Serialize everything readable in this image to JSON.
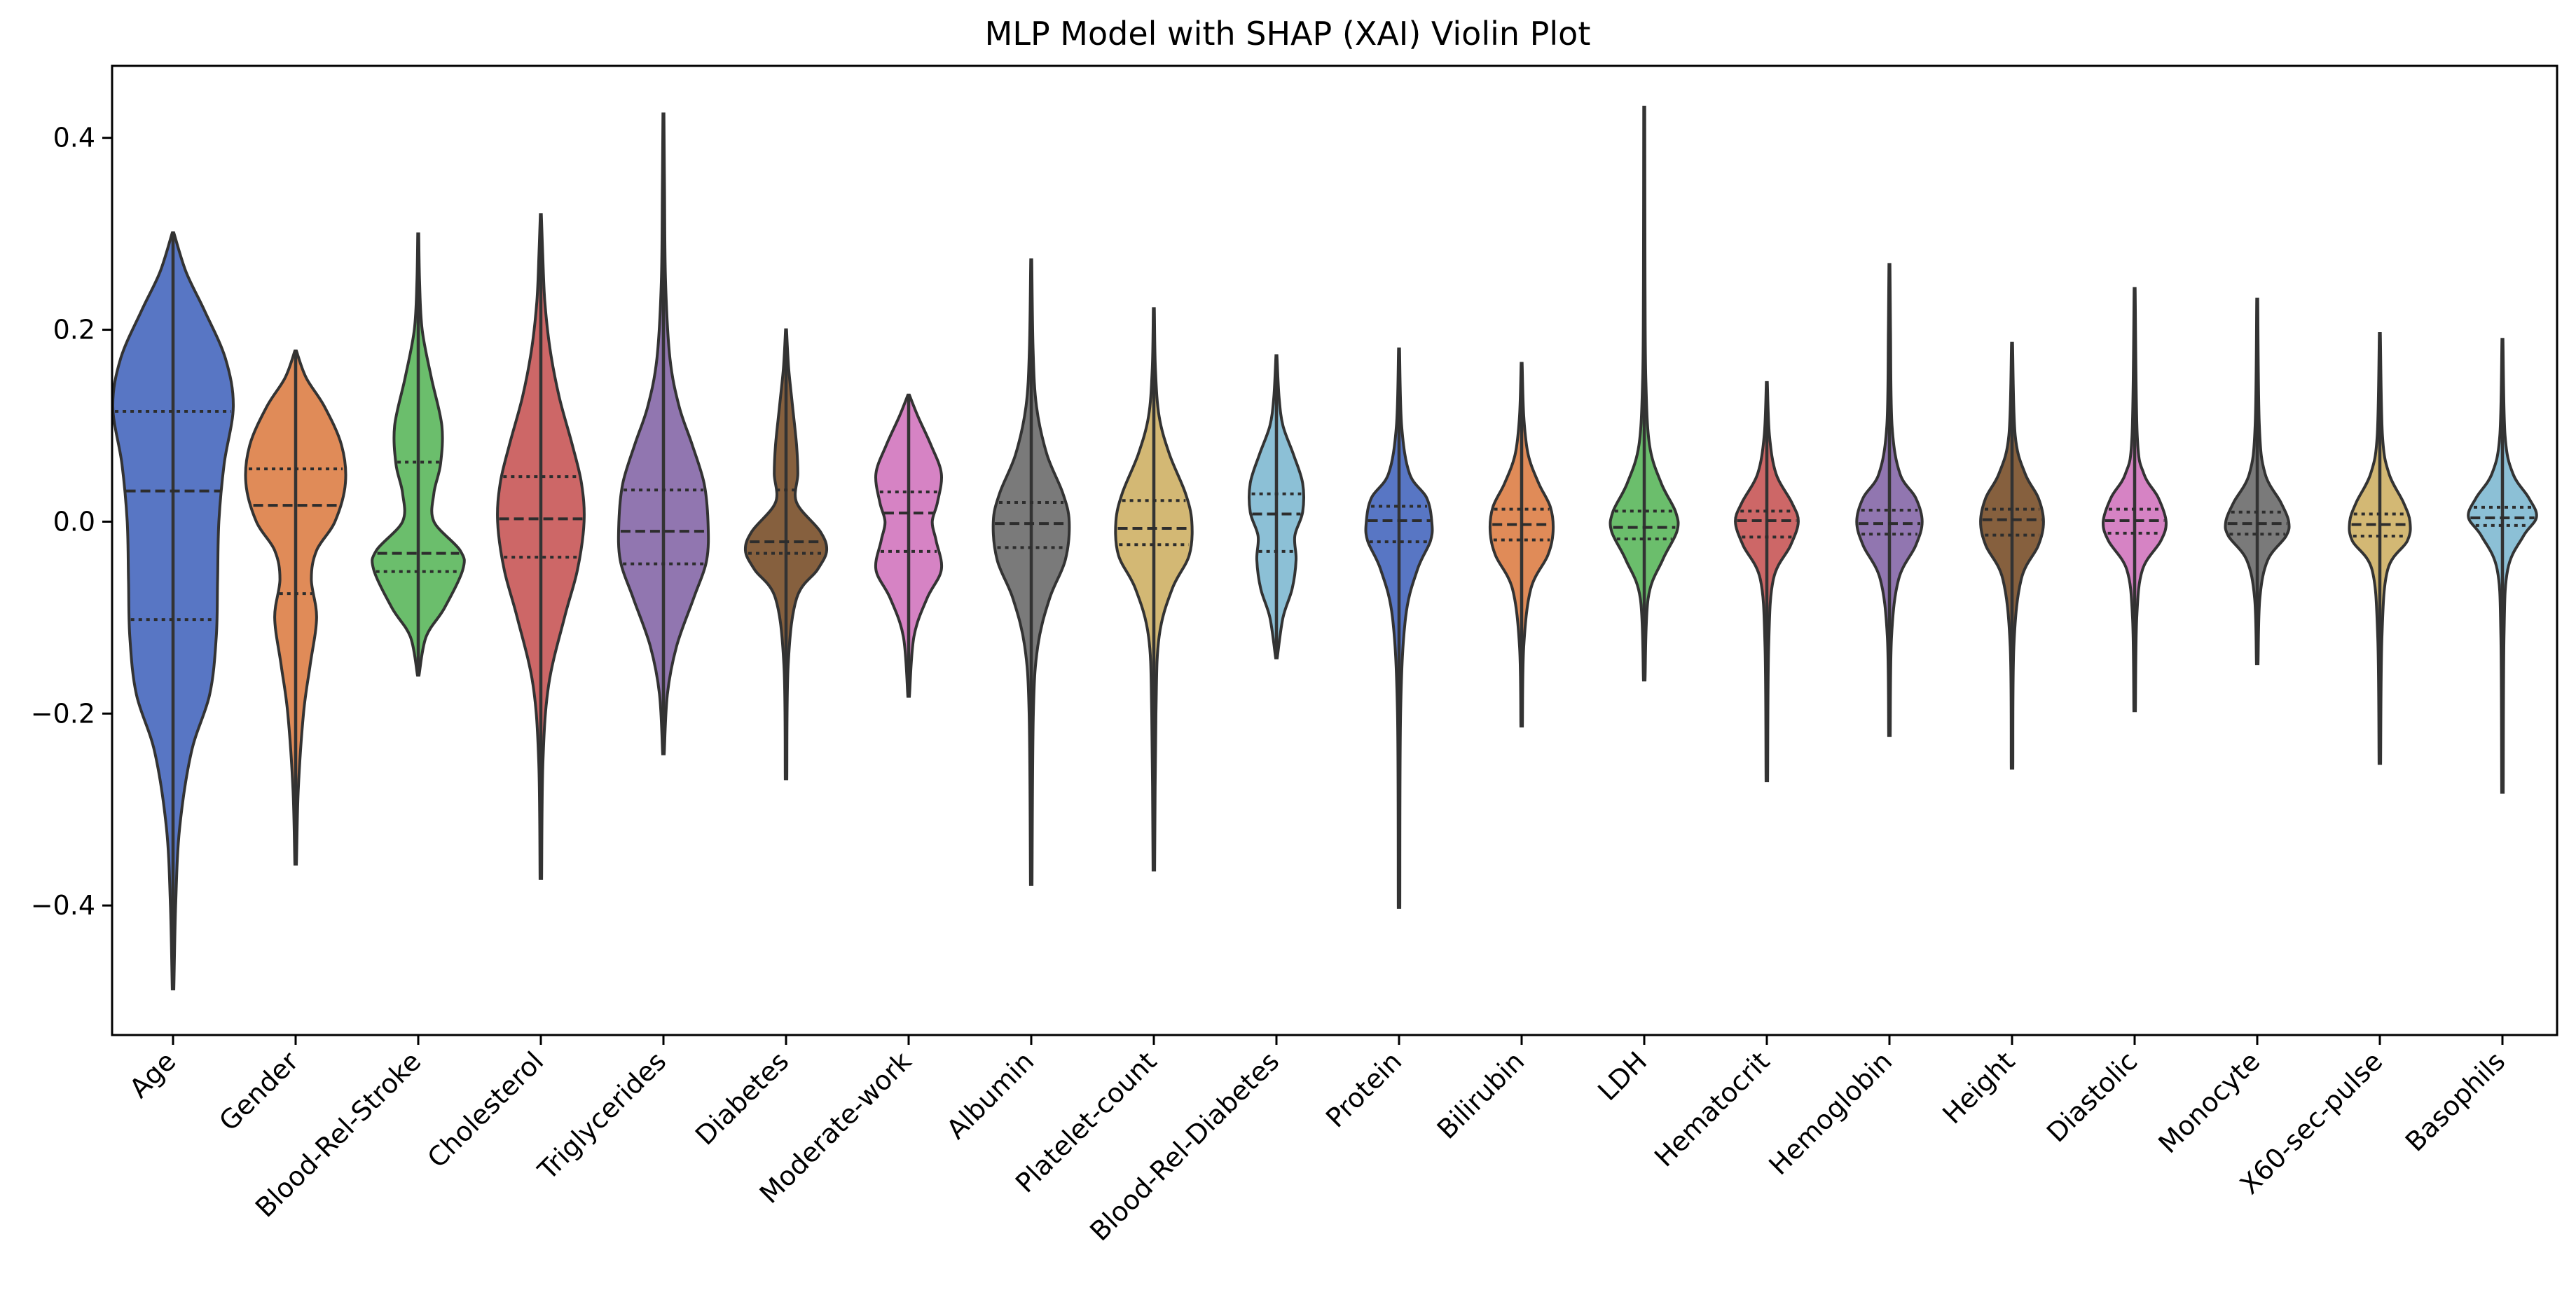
{
  "chart_data": {
    "type": "violin",
    "title": "MLP Model with SHAP (XAI) Violin Plot",
    "xlabel": "",
    "ylabel": "",
    "ylim": [
      -0.535,
      0.475
    ],
    "yticks": [
      -0.4,
      -0.2,
      0.0,
      0.2,
      0.4
    ],
    "ytick_labels": [
      "−0.4",
      "−0.2",
      "0.0",
      "0.2",
      "0.4"
    ],
    "grid": false,
    "legend": "none",
    "inner": "quartile",
    "categories": [
      "Age",
      "Gender",
      "Blood-Rel-Stroke",
      "Cholesterol",
      "Triglycerides",
      "Diabetes",
      "Moderate-work",
      "Albumin",
      "Platelet-count",
      "Blood-Rel-Diabetes",
      "Protein",
      "Bilirubin",
      "LDH",
      "Hematocrit",
      "Hemoglobin",
      "Height",
      "Diastolic",
      "Monocyte",
      "X60-sec-pulse",
      "Basophils"
    ],
    "series": [
      {
        "category": "Age",
        "color": "#5876c4",
        "min": -0.487,
        "max": 0.301,
        "q1": -0.102,
        "median": 0.032,
        "q3": 0.115,
        "profile": [
          [
            -0.487,
            0.003
          ],
          [
            -0.4,
            0.01
          ],
          [
            -0.32,
            0.025
          ],
          [
            -0.24,
            0.07
          ],
          [
            -0.18,
            0.14
          ],
          [
            -0.12,
            0.165
          ],
          [
            -0.06,
            0.17
          ],
          [
            0.0,
            0.175
          ],
          [
            0.06,
            0.195
          ],
          [
            0.12,
            0.23
          ],
          [
            0.17,
            0.2
          ],
          [
            0.22,
            0.12
          ],
          [
            0.26,
            0.05
          ],
          [
            0.301,
            0.003
          ]
        ]
      },
      {
        "category": "Gender",
        "color": "#e08b58",
        "min": -0.357,
        "max": 0.178,
        "q1": -0.075,
        "median": 0.017,
        "q3": 0.055,
        "profile": [
          [
            -0.357,
            0.003
          ],
          [
            -0.28,
            0.01
          ],
          [
            -0.2,
            0.03
          ],
          [
            -0.15,
            0.055
          ],
          [
            -0.1,
            0.08
          ],
          [
            -0.06,
            0.06
          ],
          [
            -0.03,
            0.08
          ],
          [
            0.0,
            0.15
          ],
          [
            0.04,
            0.19
          ],
          [
            0.08,
            0.175
          ],
          [
            0.12,
            0.11
          ],
          [
            0.15,
            0.04
          ],
          [
            0.178,
            0.003
          ]
        ]
      },
      {
        "category": "Blood-Rel-Stroke",
        "color": "#6bbe6c",
        "min": -0.16,
        "max": 0.3,
        "q1": -0.052,
        "median": -0.033,
        "q3": 0.062,
        "profile": [
          [
            -0.16,
            0.003
          ],
          [
            -0.12,
            0.03
          ],
          [
            -0.09,
            0.1
          ],
          [
            -0.05,
            0.17
          ],
          [
            -0.03,
            0.16
          ],
          [
            0.0,
            0.06
          ],
          [
            0.03,
            0.06
          ],
          [
            0.06,
            0.085
          ],
          [
            0.1,
            0.09
          ],
          [
            0.15,
            0.05
          ],
          [
            0.2,
            0.015
          ],
          [
            0.25,
            0.005
          ],
          [
            0.3,
            0.002
          ]
        ]
      },
      {
        "category": "Cholesterol",
        "color": "#cd6767",
        "min": -0.372,
        "max": 0.32,
        "q1": -0.037,
        "median": 0.003,
        "q3": 0.047,
        "profile": [
          [
            -0.372,
            0.003
          ],
          [
            -0.25,
            0.008
          ],
          [
            -0.17,
            0.03
          ],
          [
            -0.1,
            0.09
          ],
          [
            -0.05,
            0.14
          ],
          [
            0.0,
            0.165
          ],
          [
            0.04,
            0.155
          ],
          [
            0.08,
            0.12
          ],
          [
            0.13,
            0.07
          ],
          [
            0.18,
            0.035
          ],
          [
            0.23,
            0.015
          ],
          [
            0.28,
            0.007
          ],
          [
            0.32,
            0.002
          ]
        ]
      },
      {
        "category": "Triglycerides",
        "color": "#9176b0",
        "min": -0.242,
        "max": 0.425,
        "q1": -0.044,
        "median": -0.01,
        "q3": 0.033,
        "profile": [
          [
            -0.242,
            0.003
          ],
          [
            -0.18,
            0.015
          ],
          [
            -0.13,
            0.05
          ],
          [
            -0.08,
            0.115
          ],
          [
            -0.04,
            0.165
          ],
          [
            0.0,
            0.17
          ],
          [
            0.04,
            0.155
          ],
          [
            0.08,
            0.11
          ],
          [
            0.12,
            0.06
          ],
          [
            0.17,
            0.025
          ],
          [
            0.25,
            0.008
          ],
          [
            0.35,
            0.004
          ],
          [
            0.425,
            0.002
          ]
        ]
      },
      {
        "category": "Diabetes",
        "color": "#86603e",
        "min": -0.268,
        "max": 0.2,
        "q1": -0.033,
        "median": -0.021,
        "q3": 0.033,
        "profile": [
          [
            -0.268,
            0.003
          ],
          [
            -0.15,
            0.008
          ],
          [
            -0.08,
            0.04
          ],
          [
            -0.05,
            0.12
          ],
          [
            -0.03,
            0.155
          ],
          [
            -0.01,
            0.13
          ],
          [
            0.02,
            0.04
          ],
          [
            0.05,
            0.045
          ],
          [
            0.08,
            0.04
          ],
          [
            0.12,
            0.025
          ],
          [
            0.16,
            0.01
          ],
          [
            0.2,
            0.002
          ]
        ]
      },
      {
        "category": "Moderate-work",
        "color": "#d683c4",
        "min": -0.182,
        "max": 0.132,
        "q1": -0.031,
        "median": 0.009,
        "q3": 0.031,
        "profile": [
          [
            -0.182,
            0.003
          ],
          [
            -0.12,
            0.02
          ],
          [
            -0.08,
            0.07
          ],
          [
            -0.05,
            0.125
          ],
          [
            -0.02,
            0.105
          ],
          [
            0.0,
            0.09
          ],
          [
            0.02,
            0.11
          ],
          [
            0.05,
            0.125
          ],
          [
            0.08,
            0.085
          ],
          [
            0.11,
            0.035
          ],
          [
            0.132,
            0.003
          ]
        ]
      },
      {
        "category": "Albumin",
        "color": "#7a7a7a",
        "min": -0.378,
        "max": 0.273,
        "q1": -0.027,
        "median": -0.002,
        "q3": 0.02,
        "profile": [
          [
            -0.378,
            0.003
          ],
          [
            -0.2,
            0.008
          ],
          [
            -0.13,
            0.025
          ],
          [
            -0.08,
            0.07
          ],
          [
            -0.04,
            0.13
          ],
          [
            0.0,
            0.145
          ],
          [
            0.03,
            0.12
          ],
          [
            0.07,
            0.06
          ],
          [
            0.12,
            0.02
          ],
          [
            0.18,
            0.007
          ],
          [
            0.273,
            0.002
          ]
        ]
      },
      {
        "category": "Platelet-count",
        "color": "#d3b874",
        "min": -0.363,
        "max": 0.222,
        "q1": -0.024,
        "median": -0.007,
        "q3": 0.022,
        "profile": [
          [
            -0.363,
            0.003
          ],
          [
            -0.2,
            0.008
          ],
          [
            -0.12,
            0.02
          ],
          [
            -0.07,
            0.07
          ],
          [
            -0.035,
            0.135
          ],
          [
            0.0,
            0.145
          ],
          [
            0.03,
            0.12
          ],
          [
            0.07,
            0.06
          ],
          [
            0.11,
            0.02
          ],
          [
            0.16,
            0.006
          ],
          [
            0.222,
            0.002
          ]
        ]
      },
      {
        "category": "Blood-Rel-Diabetes",
        "color": "#8cc0d6",
        "min": -0.142,
        "max": 0.173,
        "q1": -0.031,
        "median": 0.008,
        "q3": 0.029,
        "profile": [
          [
            -0.142,
            0.003
          ],
          [
            -0.1,
            0.025
          ],
          [
            -0.07,
            0.06
          ],
          [
            -0.04,
            0.075
          ],
          [
            -0.015,
            0.07
          ],
          [
            0.01,
            0.1
          ],
          [
            0.04,
            0.1
          ],
          [
            0.07,
            0.065
          ],
          [
            0.1,
            0.025
          ],
          [
            0.13,
            0.01
          ],
          [
            0.173,
            0.002
          ]
        ]
      },
      {
        "category": "Protein",
        "color": "#5876c4",
        "min": -0.402,
        "max": 0.18,
        "q1": -0.021,
        "median": 0.001,
        "q3": 0.016,
        "profile": [
          [
            -0.402,
            0.003
          ],
          [
            -0.2,
            0.006
          ],
          [
            -0.1,
            0.025
          ],
          [
            -0.05,
            0.07
          ],
          [
            -0.02,
            0.12
          ],
          [
            0.0,
            0.125
          ],
          [
            0.025,
            0.105
          ],
          [
            0.05,
            0.04
          ],
          [
            0.1,
            0.01
          ],
          [
            0.18,
            0.002
          ]
        ]
      },
      {
        "category": "Bilirubin",
        "color": "#e08b58",
        "min": -0.213,
        "max": 0.165,
        "q1": -0.019,
        "median": -0.003,
        "q3": 0.013,
        "profile": [
          [
            -0.213,
            0.003
          ],
          [
            -0.13,
            0.008
          ],
          [
            -0.07,
            0.035
          ],
          [
            -0.035,
            0.1
          ],
          [
            -0.01,
            0.12
          ],
          [
            0.015,
            0.11
          ],
          [
            0.04,
            0.065
          ],
          [
            0.07,
            0.025
          ],
          [
            0.11,
            0.008
          ],
          [
            0.165,
            0.002
          ]
        ]
      },
      {
        "category": "LDH",
        "color": "#6bbe6c",
        "min": -0.165,
        "max": 0.432,
        "q1": -0.018,
        "median": -0.006,
        "q3": 0.011,
        "profile": [
          [
            -0.165,
            0.003
          ],
          [
            -0.08,
            0.015
          ],
          [
            -0.04,
            0.07
          ],
          [
            -0.01,
            0.125
          ],
          [
            0.01,
            0.12
          ],
          [
            0.04,
            0.065
          ],
          [
            0.08,
            0.02
          ],
          [
            0.15,
            0.006
          ],
          [
            0.25,
            0.003
          ],
          [
            0.432,
            0.002
          ]
        ]
      },
      {
        "category": "Hematocrit",
        "color": "#cd6767",
        "min": -0.27,
        "max": 0.145,
        "q1": -0.016,
        "median": 0.001,
        "q3": 0.011,
        "profile": [
          [
            -0.27,
            0.003
          ],
          [
            -0.13,
            0.007
          ],
          [
            -0.06,
            0.025
          ],
          [
            -0.025,
            0.09
          ],
          [
            0.0,
            0.12
          ],
          [
            0.02,
            0.095
          ],
          [
            0.05,
            0.035
          ],
          [
            0.09,
            0.01
          ],
          [
            0.145,
            0.002
          ]
        ]
      },
      {
        "category": "Hemoglobin",
        "color": "#9176b0",
        "min": -0.223,
        "max": 0.268,
        "q1": -0.013,
        "median": -0.002,
        "q3": 0.012,
        "profile": [
          [
            -0.223,
            0.003
          ],
          [
            -0.12,
            0.008
          ],
          [
            -0.06,
            0.035
          ],
          [
            -0.025,
            0.1
          ],
          [
            0.0,
            0.125
          ],
          [
            0.025,
            0.1
          ],
          [
            0.05,
            0.04
          ],
          [
            0.1,
            0.01
          ],
          [
            0.2,
            0.004
          ],
          [
            0.268,
            0.002
          ]
        ]
      },
      {
        "category": "Height",
        "color": "#86603e",
        "min": -0.257,
        "max": 0.186,
        "q1": -0.014,
        "median": 0.002,
        "q3": 0.013,
        "profile": [
          [
            -0.257,
            0.003
          ],
          [
            -0.13,
            0.007
          ],
          [
            -0.06,
            0.035
          ],
          [
            -0.025,
            0.1
          ],
          [
            0.0,
            0.12
          ],
          [
            0.025,
            0.1
          ],
          [
            0.05,
            0.05
          ],
          [
            0.09,
            0.012
          ],
          [
            0.186,
            0.002
          ]
        ]
      },
      {
        "category": "Diastolic",
        "color": "#d683c4",
        "min": -0.197,
        "max": 0.243,
        "q1": -0.012,
        "median": 0.001,
        "q3": 0.013,
        "profile": [
          [
            -0.197,
            0.003
          ],
          [
            -0.1,
            0.008
          ],
          [
            -0.05,
            0.03
          ],
          [
            -0.02,
            0.1
          ],
          [
            0.0,
            0.12
          ],
          [
            0.025,
            0.09
          ],
          [
            0.05,
            0.035
          ],
          [
            0.09,
            0.01
          ],
          [
            0.243,
            0.002
          ]
        ]
      },
      {
        "category": "Monocyte",
        "color": "#7a7a7a",
        "min": -0.148,
        "max": 0.232,
        "q1": -0.013,
        "median": -0.002,
        "q3": 0.01,
        "profile": [
          [
            -0.148,
            0.003
          ],
          [
            -0.08,
            0.01
          ],
          [
            -0.04,
            0.04
          ],
          [
            -0.015,
            0.11
          ],
          [
            0.0,
            0.12
          ],
          [
            0.02,
            0.09
          ],
          [
            0.05,
            0.03
          ],
          [
            0.1,
            0.008
          ],
          [
            0.232,
            0.002
          ]
        ]
      },
      {
        "category": "X60-sec-pulse",
        "color": "#d3b874",
        "min": -0.252,
        "max": 0.196,
        "q1": -0.015,
        "median": -0.003,
        "q3": 0.008,
        "profile": [
          [
            -0.252,
            0.003
          ],
          [
            -0.12,
            0.008
          ],
          [
            -0.05,
            0.03
          ],
          [
            -0.02,
            0.105
          ],
          [
            0.0,
            0.115
          ],
          [
            0.02,
            0.09
          ],
          [
            0.05,
            0.035
          ],
          [
            0.09,
            0.01
          ],
          [
            0.196,
            0.002
          ]
        ]
      },
      {
        "category": "Basophils",
        "color": "#8cc0d6",
        "min": -0.282,
        "max": 0.19,
        "q1": -0.004,
        "median": 0.004,
        "q3": 0.015,
        "profile": [
          [
            -0.282,
            0.003
          ],
          [
            -0.12,
            0.006
          ],
          [
            -0.05,
            0.02
          ],
          [
            -0.015,
            0.08
          ],
          [
            0.005,
            0.13
          ],
          [
            0.025,
            0.1
          ],
          [
            0.05,
            0.04
          ],
          [
            0.09,
            0.01
          ],
          [
            0.19,
            0.002
          ]
        ]
      }
    ]
  }
}
